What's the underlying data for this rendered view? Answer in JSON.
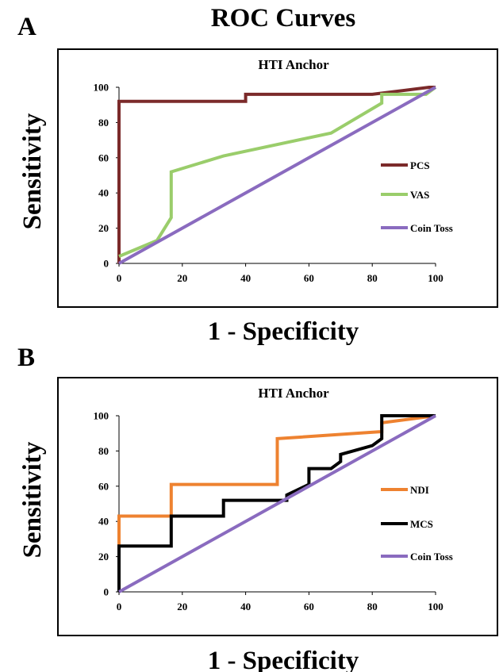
{
  "figure": {
    "title": "ROC Curves"
  },
  "chart_data": [
    {
      "panel_label": "A",
      "type": "line",
      "title": "HTI Anchor",
      "xlabel": "1 - Specificity",
      "ylabel": "Sensitivity",
      "xlim": [
        0,
        100
      ],
      "ylim": [
        0,
        100
      ],
      "xticks": [
        "0",
        "20",
        "40",
        "60",
        "80",
        "100"
      ],
      "yticks": [
        "0",
        "20",
        "40",
        "60",
        "80",
        "100"
      ],
      "grid": false,
      "legend_position": "right",
      "series": [
        {
          "name": "PCS",
          "color": "#7b2a2a",
          "points": [
            [
              0,
              0
            ],
            [
              0,
              92
            ],
            [
              40,
              92
            ],
            [
              40,
              96
            ],
            [
              80,
              96
            ],
            [
              98,
              100
            ],
            [
              100,
              100
            ]
          ]
        },
        {
          "name": "VAS",
          "color": "#9acd6b",
          "points": [
            [
              0,
              4
            ],
            [
              12,
              13
            ],
            [
              16.5,
              26
            ],
            [
              16.5,
              52
            ],
            [
              33,
              61
            ],
            [
              67,
              74
            ],
            [
              83,
              91
            ],
            [
              83,
              96
            ],
            [
              97,
              96
            ],
            [
              100,
              100
            ]
          ]
        },
        {
          "name": "Coin Toss",
          "color": "#8a6bbf",
          "points": [
            [
              0,
              0
            ],
            [
              100,
              100
            ]
          ]
        }
      ]
    },
    {
      "panel_label": "B",
      "type": "line",
      "title": "HTI Anchor",
      "xlabel": "1 - Specificity",
      "ylabel": "Sensitivity",
      "xlim": [
        0,
        100
      ],
      "ylim": [
        0,
        100
      ],
      "xticks": [
        "0",
        "20",
        "40",
        "60",
        "80",
        "100"
      ],
      "yticks": [
        "0",
        "20",
        "40",
        "60",
        "80",
        "100"
      ],
      "grid": false,
      "legend_position": "right",
      "series": [
        {
          "name": "NDI",
          "color": "#ee8230",
          "points": [
            [
              0,
              26
            ],
            [
              0,
              43
            ],
            [
              16.5,
              43
            ],
            [
              16.5,
              61
            ],
            [
              50,
              61
            ],
            [
              50,
              87
            ],
            [
              83,
              91
            ],
            [
              83,
              96
            ],
            [
              100,
              100
            ]
          ]
        },
        {
          "name": "MCS",
          "color": "#000000",
          "points": [
            [
              0,
              0
            ],
            [
              0,
              26
            ],
            [
              16.5,
              26
            ],
            [
              16.5,
              43
            ],
            [
              33,
              43
            ],
            [
              33,
              52
            ],
            [
              53,
              52
            ],
            [
              53,
              55
            ],
            [
              60,
              61
            ],
            [
              60,
              70
            ],
            [
              67,
              70
            ],
            [
              70,
              74
            ],
            [
              70,
              78
            ],
            [
              80,
              83
            ],
            [
              83,
              87
            ],
            [
              83,
              100
            ],
            [
              100,
              100
            ]
          ]
        },
        {
          "name": "Coin Toss",
          "color": "#8a6bbf",
          "points": [
            [
              0,
              0
            ],
            [
              100,
              100
            ]
          ]
        }
      ]
    }
  ]
}
